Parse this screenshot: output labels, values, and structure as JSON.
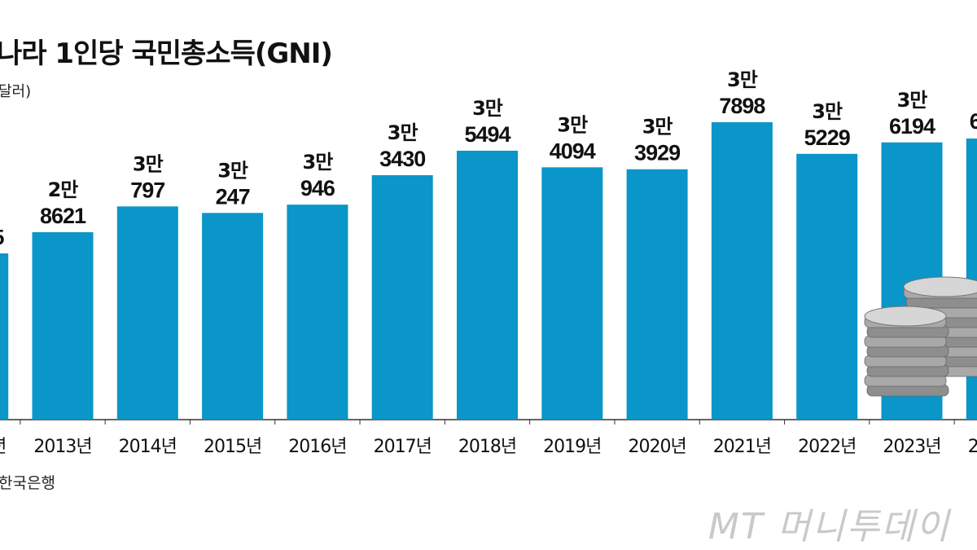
{
  "chart_data": {
    "type": "bar",
    "title": "나라 1인당 국민총소득(GNI)",
    "unit": "달러)",
    "source": "한국은행",
    "categories": [
      "2013년",
      "2014년",
      "2015년",
      "2016년",
      "2017년",
      "2018년",
      "2019년",
      "2020년",
      "2021년",
      "2022년",
      "2023년"
    ],
    "values": [
      28621,
      30797,
      30247,
      30946,
      33430,
      35494,
      34094,
      33929,
      37898,
      35229,
      36194
    ],
    "labels_top": [
      "2만",
      "3만",
      "3만",
      "3만",
      "3만",
      "3만",
      "3만",
      "3만",
      "3만",
      "3만",
      "3만"
    ],
    "labels_bottom": [
      "8621",
      "797",
      "247",
      "946",
      "3430",
      "5494",
      "4094",
      "3929",
      "7898",
      "5229",
      "6194"
    ],
    "cropped_left": {
      "category": "년",
      "label_fragment": "5"
    },
    "cropped_right": {
      "category": "20",
      "label_fragment": "6"
    },
    "bar_color": "#0a96c8",
    "grid": false,
    "ylim_visible": [
      23000,
      45000
    ]
  },
  "watermark": "MT 머니투데이"
}
